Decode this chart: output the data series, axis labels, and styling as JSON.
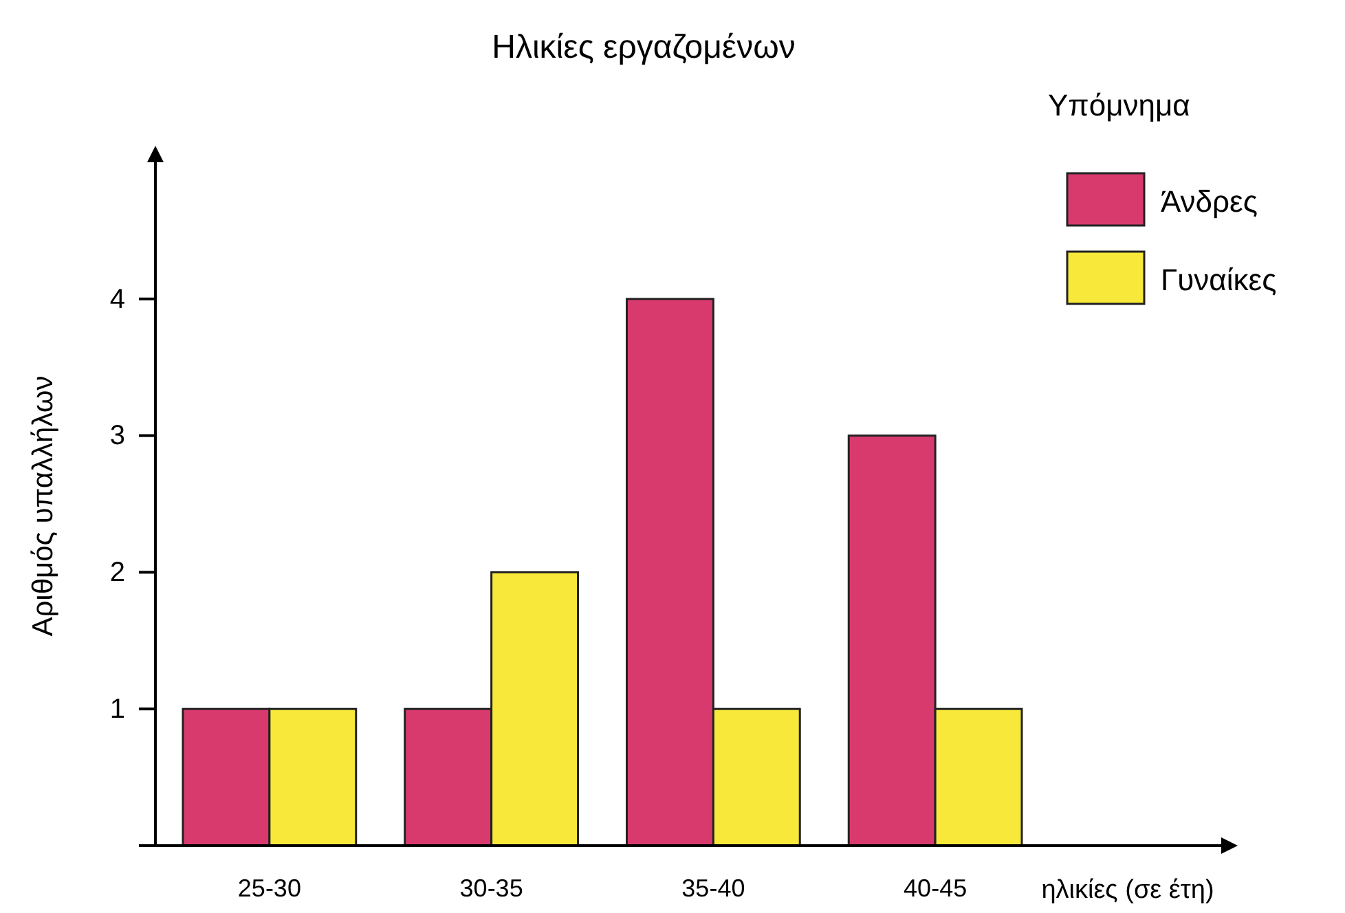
{
  "chart_data": {
    "type": "bar",
    "title": "Ηλικίες εργαζομένων",
    "xlabel": "ηλικίες (σε έτη)",
    "ylabel": "Αριθμός υπαλλήλων",
    "legend_title": "Υπόμνημα",
    "categories": [
      "25-30",
      "30-35",
      "35-40",
      "40-45"
    ],
    "series": [
      {
        "name": "Άνδρες",
        "color": "#d93a6e",
        "values": [
          1,
          1,
          4,
          3
        ]
      },
      {
        "name": "Γυναίκες",
        "color": "#f7e83a",
        "values": [
          1,
          2,
          1,
          1
        ]
      }
    ],
    "ylim": [
      0,
      5
    ],
    "yticks": [
      {
        "value": 0,
        "label": null
      },
      1,
      2,
      3,
      4
    ],
    "grid": false,
    "legend": "top right"
  }
}
